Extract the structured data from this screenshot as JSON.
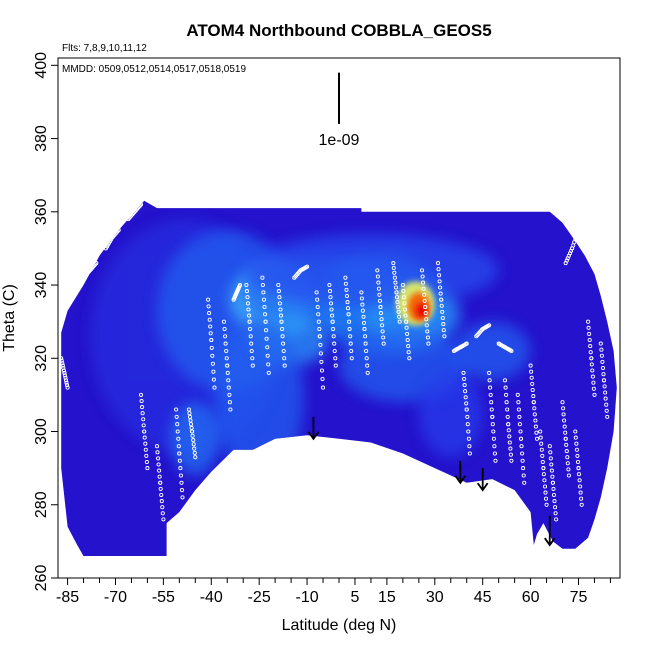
{
  "chart_data": {
    "type": "heatmap",
    "title": "ATOM4 Northbound COBBLA_GEOS5",
    "annotations": {
      "flights": "Flts: 7,8,9,10,11,12",
      "dates": "MMDD: 0509,0512,0514,0517,0518,0519"
    },
    "xlabel": "Latitude (deg N)",
    "ylabel": "Theta (C)",
    "xlim": [
      -88,
      88
    ],
    "ylim": [
      260,
      402
    ],
    "x_ticks": [
      -85,
      -70,
      -55,
      -40,
      -25,
      -10,
      5,
      15,
      30,
      45,
      60,
      75
    ],
    "x_tick_labels": [
      "-85",
      "-70",
      "-55",
      "-40",
      "-25",
      "-10",
      "5",
      "15",
      "30",
      "45",
      "60",
      "75"
    ],
    "x_minor_step": 5,
    "y_ticks": [
      260,
      280,
      300,
      320,
      340,
      360,
      380,
      400
    ],
    "y_tick_labels": [
      "260",
      "280",
      "300",
      "320",
      "340",
      "360",
      "380",
      "400"
    ],
    "scale_bar": {
      "label": "1e-09",
      "x": 0,
      "y_top": 398,
      "y_bottom": 384
    },
    "field_outline": [
      [
        -87,
        327
      ],
      [
        -85,
        333
      ],
      [
        -80,
        340
      ],
      [
        -75,
        348
      ],
      [
        -70,
        354
      ],
      [
        -65,
        359
      ],
      [
        -61,
        363
      ],
      [
        -57,
        361
      ],
      [
        -40,
        361
      ],
      [
        -20,
        361
      ],
      [
        0,
        361
      ],
      [
        7,
        361
      ],
      [
        7,
        360
      ],
      [
        30,
        360
      ],
      [
        45,
        360
      ],
      [
        55,
        360
      ],
      [
        66,
        360
      ],
      [
        70,
        357
      ],
      [
        74,
        352
      ],
      [
        77,
        348
      ],
      [
        80,
        343
      ],
      [
        82,
        337
      ],
      [
        84,
        330
      ],
      [
        86,
        322
      ],
      [
        87,
        312
      ],
      [
        86,
        300
      ],
      [
        84,
        290
      ],
      [
        82,
        282
      ],
      [
        80,
        276
      ],
      [
        78,
        271
      ],
      [
        74,
        268
      ],
      [
        70,
        268
      ],
      [
        67,
        270
      ],
      [
        64,
        275
      ],
      [
        62,
        272
      ],
      [
        61,
        269
      ],
      [
        60,
        278
      ],
      [
        55,
        284
      ],
      [
        48,
        287
      ],
      [
        40,
        286
      ],
      [
        30,
        290
      ],
      [
        20,
        294
      ],
      [
        10,
        297
      ],
      [
        0,
        298
      ],
      [
        -10,
        299
      ],
      [
        -20,
        298
      ],
      [
        -27,
        295
      ],
      [
        -33,
        295
      ],
      [
        -40,
        289
      ],
      [
        -45,
        284
      ],
      [
        -50,
        278
      ],
      [
        -54,
        275
      ],
      [
        -54,
        266
      ],
      [
        -80,
        266
      ],
      [
        -82,
        269
      ],
      [
        -85,
        274
      ],
      [
        -87,
        290
      ]
    ],
    "blobs": [
      {
        "x": -48,
        "y": 326,
        "rx": 30,
        "ry": 32,
        "value": 0.15
      },
      {
        "x": -35,
        "y": 333,
        "rx": 22,
        "ry": 22,
        "value": 0.3
      },
      {
        "x": -20,
        "y": 336,
        "rx": 14,
        "ry": 10,
        "value": 0.55
      },
      {
        "x": -5,
        "y": 338,
        "rx": 26,
        "ry": 10,
        "value": 0.35
      },
      {
        "x": -15,
        "y": 325,
        "rx": 12,
        "ry": 7,
        "value": 0.45
      },
      {
        "x": -25,
        "y": 309,
        "rx": 14,
        "ry": 22,
        "value": 0.3
      },
      {
        "x": -45,
        "y": 298,
        "rx": 8,
        "ry": 10,
        "value": 0.35
      },
      {
        "x": 13,
        "y": 335,
        "rx": 20,
        "ry": 14,
        "value": 0.4
      },
      {
        "x": 23,
        "y": 332,
        "rx": 15,
        "ry": 10,
        "value": 0.45
      },
      {
        "x": 20,
        "y": 318,
        "rx": 20,
        "ry": 10,
        "value": 0.3
      },
      {
        "x": 35,
        "y": 305,
        "rx": 10,
        "ry": 12,
        "value": 0.2
      },
      {
        "x": 10,
        "y": 344,
        "rx": 40,
        "ry": 10,
        "value": 0.25
      },
      {
        "x": 48,
        "y": 322,
        "rx": 12,
        "ry": 8,
        "value": 0.3
      },
      {
        "x": 24,
        "y": 335,
        "rx": 6,
        "ry": 6,
        "value": 0.75
      },
      {
        "x": 25,
        "y": 334,
        "rx": 3.5,
        "ry": 4,
        "value": 0.92
      },
      {
        "x": 26,
        "y": 333,
        "rx": 1.8,
        "ry": 2,
        "value": 1.0
      }
    ],
    "observation_tracks": [
      [
        [
          -87,
          320
        ],
        [
          -86,
          316
        ],
        [
          -85,
          312
        ]
      ],
      [
        [
          -80,
          342
        ],
        [
          -78,
          344
        ],
        [
          -76,
          346
        ]
      ],
      [
        [
          -73,
          350
        ],
        [
          -71,
          353
        ],
        [
          -69,
          355
        ]
      ],
      [
        [
          -66,
          358
        ],
        [
          -64,
          360
        ],
        [
          -62,
          362
        ]
      ],
      [
        [
          -62,
          310
        ],
        [
          -61,
          300
        ],
        [
          -60,
          290
        ]
      ],
      [
        [
          -57,
          296
        ],
        [
          -56,
          286
        ],
        [
          -55,
          276
        ]
      ],
      [
        [
          -51,
          306
        ],
        [
          -50,
          294
        ],
        [
          -49,
          282
        ]
      ],
      [
        [
          -47,
          306
        ],
        [
          -46,
          300
        ],
        [
          -45,
          293
        ]
      ],
      [
        [
          -41,
          336
        ],
        [
          -40,
          325
        ],
        [
          -39,
          312
        ]
      ],
      [
        [
          -36,
          330
        ],
        [
          -35,
          318
        ],
        [
          -34,
          306
        ]
      ],
      [
        [
          -33,
          336
        ],
        [
          -32,
          338
        ],
        [
          -31,
          340
        ]
      ],
      [
        [
          -29,
          340
        ],
        [
          -28,
          330
        ],
        [
          -27,
          318
        ]
      ],
      [
        [
          -24,
          342
        ],
        [
          -23,
          330
        ],
        [
          -22,
          316
        ]
      ],
      [
        [
          -19,
          340
        ],
        [
          -18,
          330
        ],
        [
          -17,
          318
        ]
      ],
      [
        [
          -14,
          342
        ],
        [
          -12,
          344
        ],
        [
          -10,
          345
        ]
      ],
      [
        [
          -7,
          338
        ],
        [
          -6,
          326
        ],
        [
          -5,
          312
        ]
      ],
      [
        [
          -3,
          340
        ],
        [
          -2,
          330
        ],
        [
          -1,
          318
        ]
      ],
      [
        [
          2,
          342
        ],
        [
          3,
          332
        ],
        [
          4,
          320
        ]
      ],
      [
        [
          7,
          338
        ],
        [
          8,
          328
        ],
        [
          9,
          316
        ]
      ],
      [
        [
          12,
          344
        ],
        [
          13,
          334
        ],
        [
          14,
          324
        ]
      ],
      [
        [
          17,
          346
        ],
        [
          18,
          338
        ],
        [
          19,
          330
        ]
      ],
      [
        [
          20,
          340
        ],
        [
          21,
          330
        ],
        [
          22,
          320
        ]
      ],
      [
        [
          26,
          344
        ],
        [
          27,
          334
        ],
        [
          28,
          324
        ]
      ],
      [
        [
          31,
          346
        ],
        [
          32,
          336
        ],
        [
          33,
          326
        ]
      ],
      [
        [
          36,
          322
        ],
        [
          38,
          323
        ],
        [
          40,
          324
        ]
      ],
      [
        [
          39,
          316
        ],
        [
          40,
          306
        ],
        [
          41,
          294
        ]
      ],
      [
        [
          43,
          326
        ],
        [
          45,
          328
        ],
        [
          47,
          329
        ]
      ],
      [
        [
          47,
          316
        ],
        [
          48,
          304
        ],
        [
          49,
          292
        ]
      ],
      [
        [
          50,
          324
        ],
        [
          52,
          323
        ],
        [
          54,
          322
        ]
      ],
      [
        [
          52,
          314
        ],
        [
          53,
          302
        ],
        [
          54,
          292
        ]
      ],
      [
        [
          56,
          310
        ],
        [
          57,
          298
        ],
        [
          58,
          286
        ]
      ],
      [
        [
          60,
          318
        ],
        [
          61,
          308
        ],
        [
          62,
          298
        ]
      ],
      [
        [
          63,
          300
        ],
        [
          64,
          290
        ],
        [
          65,
          280
        ]
      ],
      [
        [
          66,
          296
        ],
        [
          67,
          286
        ],
        [
          68,
          276
        ]
      ],
      [
        [
          70,
          308
        ],
        [
          71,
          298
        ],
        [
          72,
          288
        ]
      ],
      [
        [
          71,
          346
        ],
        [
          73,
          350
        ],
        [
          75,
          355
        ]
      ],
      [
        [
          74,
          300
        ],
        [
          75,
          290
        ],
        [
          76,
          280
        ]
      ],
      [
        [
          78,
          330
        ],
        [
          79,
          320
        ],
        [
          80,
          310
        ]
      ],
      [
        [
          82,
          324
        ],
        [
          83,
          314
        ],
        [
          84,
          304
        ]
      ]
    ],
    "arrows": [
      {
        "x": -8,
        "y_top": 304,
        "y_bottom": 298
      },
      {
        "x": 38,
        "y_top": 292,
        "y_bottom": 286
      },
      {
        "x": 45,
        "y_top": 290,
        "y_bottom": 284
      },
      {
        "x": 66,
        "y_top": 277,
        "y_bottom": 269
      }
    ]
  }
}
